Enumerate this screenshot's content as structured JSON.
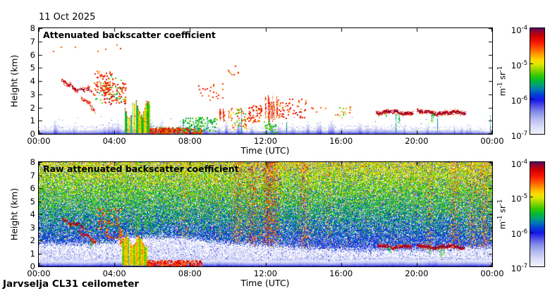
{
  "date_label": "11 Oct 2025",
  "footer_label": "Jarvselja CL31 ceilometer",
  "axes": {
    "xlabel": "Time (UTC)",
    "ylabel": "Height (km)",
    "x_ticks": [
      "00:00",
      "04:00",
      "08:00",
      "12:00",
      "16:00",
      "20:00",
      "00:00"
    ],
    "y_ticks": [
      "0",
      "1",
      "2",
      "3",
      "4",
      "5",
      "6",
      "7",
      "8"
    ]
  },
  "colorbar": {
    "scale": "log10",
    "min": "1e-7",
    "max": "1e-4",
    "tick_labels": [
      {
        "base": "10",
        "exp": "-4"
      },
      {
        "base": "10",
        "exp": "-5"
      },
      {
        "base": "10",
        "exp": "-6"
      },
      {
        "base": "10",
        "exp": "-7"
      }
    ],
    "unit_parts": [
      {
        "base": "m",
        "exp": "-1"
      },
      {
        "base": "sr",
        "exp": "-1"
      }
    ]
  },
  "colormap": {
    "stops": [
      [
        0.0,
        "#f0f0fb"
      ],
      [
        0.07,
        "#d8dbf7"
      ],
      [
        0.14,
        "#b4b9f0"
      ],
      [
        0.21,
        "#8289e8"
      ],
      [
        0.27,
        "#4a4ae4"
      ],
      [
        0.32,
        "#1717e8"
      ],
      [
        0.37,
        "#0040d4"
      ],
      [
        0.42,
        "#0079b2"
      ],
      [
        0.46,
        "#00a078"
      ],
      [
        0.5,
        "#00b83c"
      ],
      [
        0.55,
        "#30c800"
      ],
      [
        0.6,
        "#84d400"
      ],
      [
        0.66,
        "#e0e800"
      ],
      [
        0.7,
        "#ffd900"
      ],
      [
        0.76,
        "#ff9500"
      ],
      [
        0.81,
        "#ff5500"
      ],
      [
        0.87,
        "#f91500"
      ],
      [
        0.93,
        "#cc0000"
      ],
      [
        0.97,
        "#94052e"
      ],
      [
        1.0,
        "#5e0a5e"
      ]
    ]
  },
  "chart_data": [
    {
      "type": "heatmap",
      "title": "Attenuated backscatter coefficient",
      "xlabel": "Time (UTC)",
      "ylabel": "Height (km)",
      "x_range_hours": [
        0,
        24
      ],
      "y_range_km": [
        0,
        8
      ],
      "x_tick_hours": [
        0,
        4,
        8,
        12,
        16,
        20,
        24
      ],
      "colorbar_scale": "log10",
      "colorbar_range": [
        "1e-7",
        "1e-4"
      ],
      "seed": 12345,
      "aerosol_band": {
        "base_km": 0.32,
        "var_km": 0.1,
        "n_spikes": 46,
        "spike_km": 0.45,
        "v_deep": 0.3,
        "v_surface": 0.06,
        "speckle_km": 0.3
      },
      "features": [
        {
          "kind": "dots",
          "t": [
            0.5,
            4.3
          ],
          "h": [
            5.9,
            7.0
          ],
          "n": 7,
          "v": [
            0.78,
            0.9
          ],
          "size": 2
        },
        {
          "kind": "ridge",
          "t": [
            1.2,
            2.95
          ],
          "h": [
            3.85,
            3.1
          ],
          "thick": 0.28,
          "density": 4,
          "gap": 0.3,
          "wiggle": 0.15,
          "core_v": [
            0.92,
            1.0
          ],
          "main_v": [
            0.82,
            0.92
          ],
          "fringe_v": [
            0.55,
            0.75
          ]
        },
        {
          "kind": "ridge",
          "t": [
            2.15,
            2.95
          ],
          "h": [
            2.95,
            1.8
          ],
          "thick": 0.22,
          "density": 4,
          "gap": 0.25,
          "wiggle": 0.1,
          "core_v": [
            0.85,
            0.97
          ],
          "main_v": [
            0.78,
            0.9
          ],
          "fringe_v": [
            0.45,
            0.6
          ]
        },
        {
          "kind": "dots",
          "t": [
            2.9,
            3.9
          ],
          "h": [
            3.0,
            4.8
          ],
          "n": 80,
          "v": [
            0.76,
            0.94
          ],
          "size": 2
        },
        {
          "kind": "dots",
          "t": [
            3.4,
            4.6
          ],
          "h": [
            2.3,
            3.9
          ],
          "n": 80,
          "v": [
            0.76,
            0.94
          ],
          "size": 2
        },
        {
          "kind": "dots",
          "t": [
            2.9,
            4.6
          ],
          "h": [
            2.4,
            4.6
          ],
          "n": 30,
          "v": [
            0.48,
            0.62
          ],
          "size": 2
        },
        {
          "kind": "columns",
          "t": [
            4.55,
            5.85
          ],
          "h_top": [
            1.2,
            2.45
          ],
          "v": [
            0.5,
            0.7
          ],
          "cap_v": [
            0.8,
            0.92
          ],
          "gap": 0.06
        },
        {
          "kind": "dots",
          "t": [
            5.85,
            8.6
          ],
          "h": [
            0.02,
            0.5
          ],
          "n": 300,
          "v": [
            0.78,
            0.95
          ],
          "size": 2
        },
        {
          "kind": "dots",
          "t": [
            5.85,
            8.6
          ],
          "h": [
            0.0,
            0.6
          ],
          "n": 130,
          "v": [
            0.45,
            0.62
          ],
          "size": 1
        },
        {
          "kind": "dots",
          "t": [
            7.6,
            9.4
          ],
          "h": [
            0.2,
            1.3
          ],
          "n": 120,
          "v": [
            0.44,
            0.6
          ],
          "size": 2
        },
        {
          "kind": "dots",
          "t": [
            8.4,
            9.8
          ],
          "h": [
            2.6,
            4.0
          ],
          "n": 22,
          "v": [
            0.76,
            0.9
          ],
          "size": 2
        },
        {
          "kind": "dots",
          "t": [
            9.9,
            10.7
          ],
          "h": [
            4.4,
            5.2
          ],
          "n": 8,
          "v": [
            0.76,
            0.88
          ],
          "size": 2
        },
        {
          "kind": "vstreaks",
          "t": [
            9.45,
            10.15
          ],
          "h": [
            0.8,
            2.0
          ],
          "n": 7,
          "v": [
            0.8,
            0.93
          ]
        },
        {
          "kind": "dots",
          "t": [
            10.1,
            11.0
          ],
          "h": [
            0.3,
            2.0
          ],
          "n": 50,
          "v": [
            0.5,
            0.88
          ],
          "size": 2
        },
        {
          "kind": "vspikes",
          "centers": [
            {
              "t": 10.7,
              "h": 1.9
            },
            {
              "t": 13.1,
              "h": 0.9
            },
            {
              "t": 18.9,
              "h": 1.5
            },
            {
              "t": 21.1,
              "h": 1.2
            },
            {
              "t": 23.9,
              "h": 1.4
            }
          ],
          "v": [
            0.38,
            0.5
          ]
        },
        {
          "kind": "dots",
          "t": [
            11.0,
            11.75
          ],
          "h": [
            0.9,
            2.2
          ],
          "n": 60,
          "v": [
            0.76,
            0.93
          ],
          "size": 2
        },
        {
          "kind": "vstreaks",
          "t": [
            11.85,
            12.6
          ],
          "h": [
            0.5,
            3.2
          ],
          "n": 9,
          "v": [
            0.8,
            0.95
          ]
        },
        {
          "kind": "dots",
          "t": [
            11.9,
            12.6
          ],
          "h": [
            0.1,
            1.0
          ],
          "n": 35,
          "v": [
            0.46,
            0.6
          ],
          "size": 2
        },
        {
          "kind": "dots",
          "t": [
            12.6,
            14.1
          ],
          "h": [
            1.2,
            2.7
          ],
          "n": 60,
          "v": [
            0.76,
            0.93
          ],
          "size": 2
        },
        {
          "kind": "dots",
          "t": [
            14.2,
            15.4
          ],
          "h": [
            1.7,
            2.4
          ],
          "n": 5,
          "v": [
            0.74,
            0.86
          ],
          "size": 2
        },
        {
          "kind": "dots",
          "t": [
            15.6,
            16.6
          ],
          "h": [
            1.2,
            2.1
          ],
          "n": 16,
          "v": [
            0.5,
            0.88
          ],
          "size": 2
        },
        {
          "kind": "ridge",
          "t": [
            17.8,
            19.8
          ],
          "h": [
            1.7,
            1.62
          ],
          "thick": 0.24,
          "density": 5,
          "gap": 0.08,
          "wiggle": 0.08,
          "core_v": [
            0.93,
            1.0
          ],
          "main_v": [
            0.83,
            0.93
          ],
          "fringe_v": [
            0.46,
            0.62
          ],
          "virga": 2
        },
        {
          "kind": "ridge",
          "t": [
            20.0,
            22.55
          ],
          "h": [
            1.66,
            1.6
          ],
          "thick": 0.26,
          "density": 5,
          "gap": 0.06,
          "wiggle": 0.08,
          "core_v": [
            0.93,
            1.0
          ],
          "main_v": [
            0.83,
            0.93
          ],
          "fringe_v": [
            0.46,
            0.62
          ],
          "virga": 3
        },
        {
          "kind": "dots",
          "t": [
            0.2,
            23.8
          ],
          "h": [
            0.5,
            1.5
          ],
          "n": 30,
          "v": [
            0.18,
            0.34
          ],
          "size": 1
        }
      ]
    },
    {
      "type": "heatmap",
      "title": "Raw attenuated backscatter coefficient",
      "xlabel": "Time (UTC)",
      "ylabel": "Height (km)",
      "x_range_hours": [
        0,
        24
      ],
      "y_range_km": [
        0,
        8
      ],
      "x_tick_hours": [
        0,
        4,
        8,
        12,
        16,
        20,
        24
      ],
      "colorbar_scale": "log10",
      "colorbar_range": [
        "1e-7",
        "1e-4"
      ],
      "seed": 987654,
      "noise": {
        "cover": 0.88,
        "mean_v": [
          0.18,
          0.48,
          0.75
        ],
        "spread": 0.11,
        "warm_prob_base": 0.02,
        "warm_prob_top": 0.12,
        "warm_v": [
          0.62,
          0.95
        ],
        "cool_prob": 0.18,
        "cool_v": [
          0.1,
          0.4
        ],
        "pale_cover": 0.5,
        "pale_v": [
          0.02,
          0.18
        ],
        "pale_blue_prob": 0.05,
        "pale_blue_v": [
          0.2,
          0.38
        ],
        "boundary_km": [
          [
            0,
            1.8
          ],
          [
            2,
            1.75
          ],
          [
            4,
            1.85
          ],
          [
            4.6,
            2.3
          ],
          [
            7.5,
            2.25
          ],
          [
            9.5,
            1.9
          ],
          [
            12,
            1.65
          ],
          [
            14,
            1.45
          ],
          [
            16,
            1.3
          ],
          [
            19,
            1.3
          ],
          [
            22,
            1.45
          ],
          [
            24,
            1.5
          ]
        ],
        "streaks": [
          {
            "t": 7.7,
            "w": 0.2,
            "boost": 0.12
          },
          {
            "t": 9.4,
            "w": 0.25,
            "boost": 0.1
          },
          {
            "t": 10.5,
            "w": 0.3,
            "boost": 0.22
          },
          {
            "t": 11.3,
            "w": 0.35,
            "boost": 0.26
          },
          {
            "t": 12.05,
            "w": 0.25,
            "boost": 0.3
          },
          {
            "t": 12.45,
            "w": 0.3,
            "boost": 0.26
          },
          {
            "t": 14.0,
            "w": 0.3,
            "boost": 0.22
          },
          {
            "t": 15.3,
            "w": 0.15,
            "boost": 0.12
          },
          {
            "t": 20.7,
            "w": 0.2,
            "boost": 0.14
          },
          {
            "t": 22.0,
            "w": 0.3,
            "boost": 0.2
          },
          {
            "t": 22.9,
            "w": 0.25,
            "boost": 0.18
          },
          {
            "t": 23.55,
            "w": 0.3,
            "boost": 0.22
          }
        ]
      },
      "aerosol_band": {
        "base_km": 0.5,
        "var_km": 0.07,
        "n_spikes": 18,
        "spike_km": 0.18,
        "v_deep": 0.34,
        "v_surface": 0.02,
        "speckle_km": 0.12
      },
      "features": [
        {
          "kind": "ridge",
          "t": [
            1.2,
            2.4
          ],
          "h": [
            3.6,
            3.0
          ],
          "thick": 0.26,
          "density": 4,
          "gap": 0.25,
          "wiggle": 0.12,
          "core_v": [
            0.92,
            1.0
          ],
          "main_v": [
            0.82,
            0.92
          ],
          "fringe_v": [
            0.5,
            0.68
          ]
        },
        {
          "kind": "ridge",
          "t": [
            2.1,
            3.0
          ],
          "h": [
            2.7,
            1.9
          ],
          "thick": 0.24,
          "density": 4,
          "gap": 0.2,
          "wiggle": 0.1,
          "core_v": [
            0.88,
            0.99
          ],
          "main_v": [
            0.8,
            0.9
          ],
          "fringe_v": [
            0.45,
            0.6
          ],
          "virga": 2
        },
        {
          "kind": "dots",
          "t": [
            3.0,
            4.3
          ],
          "h": [
            2.2,
            4.5
          ],
          "n": 70,
          "v": [
            0.74,
            0.92
          ],
          "size": 2
        },
        {
          "kind": "vstreaks",
          "t": [
            4.25,
            4.7
          ],
          "h": [
            1.5,
            3.1
          ],
          "n": 5,
          "v": [
            0.74,
            0.86
          ]
        },
        {
          "kind": "columns",
          "t": [
            4.4,
            5.7
          ],
          "h_top": [
            1.5,
            2.3
          ],
          "v": [
            0.58,
            0.74
          ],
          "cap_v": [
            0.78,
            0.88
          ],
          "gap": 0.04
        },
        {
          "kind": "vstreaks",
          "t": [
            4.8,
            6.1
          ],
          "h": [
            2.2,
            4.4
          ],
          "n": 10,
          "v": [
            0.46,
            0.6
          ]
        },
        {
          "kind": "dots",
          "t": [
            5.7,
            8.6
          ],
          "h": [
            0.02,
            0.5
          ],
          "n": 260,
          "v": [
            0.78,
            0.95
          ],
          "size": 2
        },
        {
          "kind": "ridge",
          "t": [
            17.9,
            19.7
          ],
          "h": [
            1.55,
            1.5
          ],
          "thick": 0.22,
          "density": 5,
          "gap": 0.1,
          "wiggle": 0.07,
          "core_v": [
            0.93,
            1.0
          ],
          "main_v": [
            0.83,
            0.93
          ],
          "fringe_v": [
            0.46,
            0.62
          ],
          "virga": 2
        },
        {
          "kind": "ridge",
          "t": [
            20.0,
            22.5
          ],
          "h": [
            1.55,
            1.5
          ],
          "thick": 0.24,
          "density": 5,
          "gap": 0.08,
          "wiggle": 0.07,
          "core_v": [
            0.93,
            1.0
          ],
          "main_v": [
            0.83,
            0.93
          ],
          "fringe_v": [
            0.46,
            0.62
          ],
          "virga": 3
        }
      ]
    }
  ]
}
